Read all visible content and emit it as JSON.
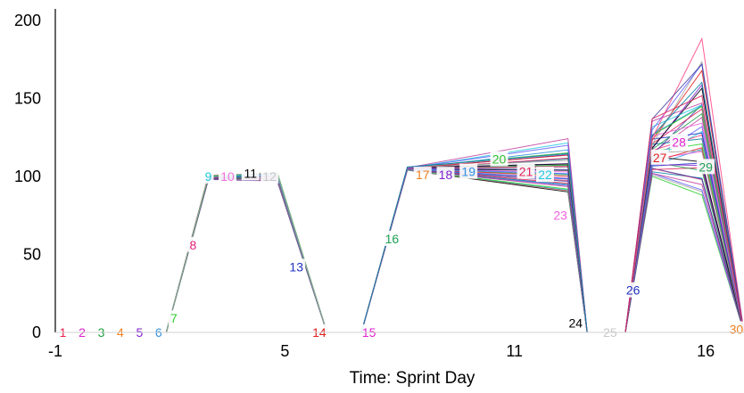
{
  "chart_data": {
    "type": "line",
    "title": "",
    "xlabel": "Time: Sprint Day",
    "ylabel": "",
    "xlim": [
      -1,
      17
    ],
    "ylim": [
      0,
      205
    ],
    "x_ticks": [
      "-1",
      "5",
      "11",
      "16"
    ],
    "y_ticks": [
      "0",
      "50",
      "100",
      "150",
      "200"
    ],
    "grid": false,
    "series_count_note": "many overlapping simulation traces",
    "points": [
      {
        "label": "1",
        "x": -0.8,
        "y": 0,
        "color": "#e8204a"
      },
      {
        "label": "2",
        "x": -0.3,
        "y": 0,
        "color": "#e020d0"
      },
      {
        "label": "3",
        "x": 0.2,
        "y": 0,
        "color": "#20a040"
      },
      {
        "label": "4",
        "x": 0.7,
        "y": 0,
        "color": "#f08020"
      },
      {
        "label": "5",
        "x": 1.2,
        "y": 0,
        "color": "#8020d0"
      },
      {
        "label": "6",
        "x": 1.7,
        "y": 0,
        "color": "#3090e0"
      },
      {
        "label": "7",
        "x": 2.1,
        "y": 9,
        "color": "#30d030"
      },
      {
        "label": "8",
        "x": 2.6,
        "y": 56,
        "color": "#e0207a"
      },
      {
        "label": "9",
        "x": 3.0,
        "y": 100,
        "color": "#20c8e0"
      },
      {
        "label": "10",
        "x": 3.5,
        "y": 100,
        "color": "#f070e0"
      },
      {
        "label": "11",
        "x": 4.1,
        "y": 102,
        "color": "#000000"
      },
      {
        "label": "12",
        "x": 4.6,
        "y": 100,
        "color": "#c8c8c8"
      },
      {
        "label": "13",
        "x": 5.3,
        "y": 42,
        "color": "#2030c0"
      },
      {
        "label": "14",
        "x": 5.9,
        "y": 0,
        "color": "#e02020"
      },
      {
        "label": "15",
        "x": 7.2,
        "y": 0,
        "color": "#e020d0"
      },
      {
        "label": "16",
        "x": 7.8,
        "y": 60,
        "color": "#20a050"
      },
      {
        "label": "17",
        "x": 8.6,
        "y": 101,
        "color": "#f08020"
      },
      {
        "label": "18",
        "x": 9.2,
        "y": 101,
        "color": "#8020d0"
      },
      {
        "label": "19",
        "x": 9.8,
        "y": 103,
        "color": "#3090e0"
      },
      {
        "label": "20",
        "x": 10.6,
        "y": 111,
        "color": "#30c030"
      },
      {
        "label": "21",
        "x": 11.3,
        "y": 103,
        "color": "#e0205a"
      },
      {
        "label": "22",
        "x": 11.8,
        "y": 101,
        "color": "#20c8e0"
      },
      {
        "label": "23",
        "x": 12.2,
        "y": 75,
        "color": "#f060e0"
      },
      {
        "label": "24",
        "x": 12.6,
        "y": 6,
        "color": "#000000"
      },
      {
        "label": "25",
        "x": 13.5,
        "y": 0,
        "color": "#c8c8c8"
      },
      {
        "label": "26",
        "x": 14.1,
        "y": 27,
        "color": "#2030c0"
      },
      {
        "label": "27",
        "x": 14.8,
        "y": 112,
        "color": "#e02020"
      },
      {
        "label": "28",
        "x": 15.3,
        "y": 122,
        "color": "#e020d0"
      },
      {
        "label": "29",
        "x": 16.0,
        "y": 106,
        "color": "#20a050"
      },
      {
        "label": "30",
        "x": 16.8,
        "y": 2,
        "color": "#f08020"
      }
    ],
    "segments": [
      {
        "x": [
          -1,
          1.9
        ],
        "y_low": [
          0,
          0
        ],
        "y_high": [
          0,
          0
        ]
      },
      {
        "x": [
          1.9,
          3.0,
          4.8,
          6.1
        ],
        "y_low": [
          0,
          98,
          97,
          0
        ],
        "y_high": [
          0,
          101,
          103,
          0
        ]
      },
      {
        "x": [
          7.0,
          8.2,
          12.4,
          12.9
        ],
        "y_low": [
          0,
          104,
          90,
          0
        ],
        "y_high": [
          0,
          106,
          126,
          0
        ]
      },
      {
        "x": [
          13.9,
          14.6,
          15.9,
          17.0
        ],
        "y_low": [
          0,
          100,
          88,
          0
        ],
        "y_high": [
          0,
          140,
          194,
          0
        ]
      }
    ]
  }
}
